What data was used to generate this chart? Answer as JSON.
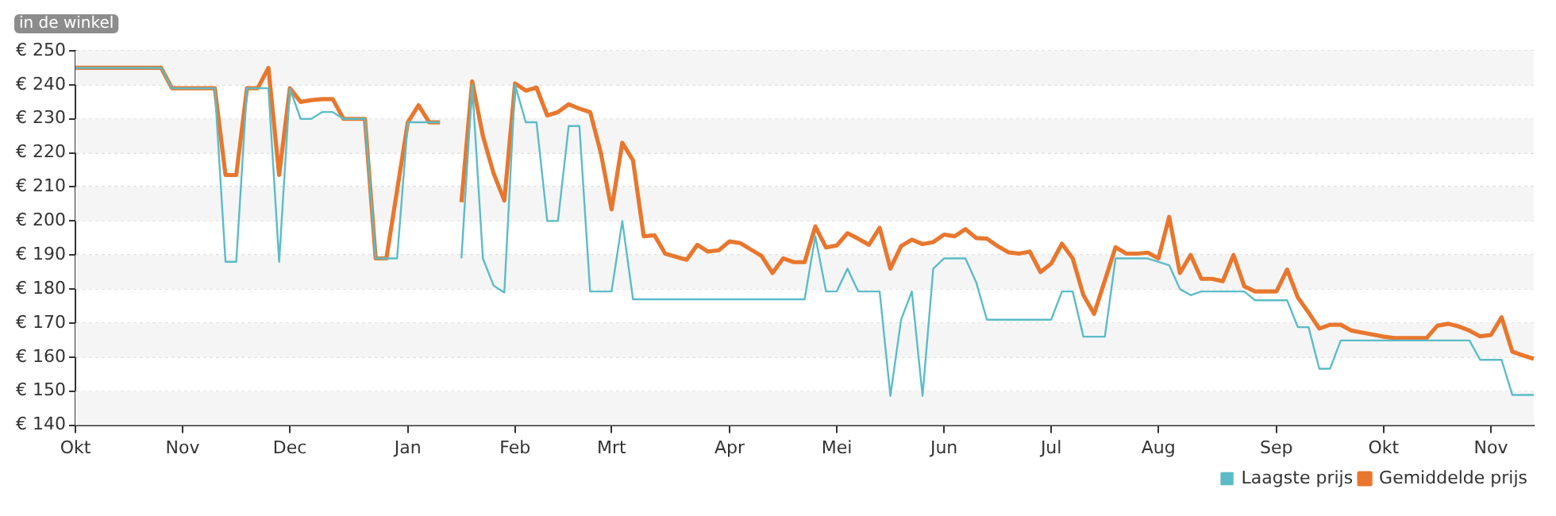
{
  "chart_data": {
    "type": "line",
    "categories": [
      "Okt",
      null,
      null,
      null,
      null,
      null,
      null,
      null,
      null,
      null,
      "Nov",
      null,
      null,
      null,
      null,
      null,
      null,
      null,
      null,
      null,
      "Dec",
      null,
      null,
      null,
      null,
      null,
      null,
      null,
      null,
      null,
      null,
      "Jan",
      null,
      null,
      null,
      null,
      null,
      null,
      null,
      null,
      null,
      "Feb",
      null,
      null,
      null,
      null,
      null,
      null,
      null,
      null,
      "Mrt",
      null,
      null,
      null,
      null,
      null,
      null,
      null,
      null,
      null,
      null,
      "Apr",
      null,
      null,
      null,
      null,
      null,
      null,
      null,
      null,
      null,
      "Mei",
      null,
      null,
      null,
      null,
      null,
      null,
      null,
      null,
      null,
      "Jun",
      null,
      null,
      null,
      null,
      null,
      null,
      null,
      null,
      null,
      "Jul",
      null,
      null,
      null,
      null,
      null,
      null,
      null,
      null,
      null,
      "Aug",
      null,
      null,
      null,
      null,
      null,
      null,
      null,
      null,
      null,
      null,
      "Sep",
      null,
      null,
      null,
      null,
      null,
      null,
      null,
      null,
      null,
      "Okt",
      null,
      null,
      null,
      null,
      null,
      null,
      null,
      null,
      null,
      "Nov",
      null,
      null,
      null,
      null
    ],
    "ylim": [
      140,
      250
    ],
    "yticks": [
      {
        "value": 140,
        "label": "€ 140"
      },
      {
        "value": 150,
        "label": "€ 150"
      },
      {
        "value": 160,
        "label": "€ 160"
      },
      {
        "value": 170,
        "label": "€ 170"
      },
      {
        "value": 180,
        "label": "€ 180"
      },
      {
        "value": 190,
        "label": "€ 190"
      },
      {
        "value": 200,
        "label": "€ 200"
      },
      {
        "value": 210,
        "label": "€ 210"
      },
      {
        "value": 220,
        "label": "€ 220"
      },
      {
        "value": 230,
        "label": "€ 230"
      },
      {
        "value": 240,
        "label": "€ 240"
      },
      {
        "value": 250,
        "label": "€ 250"
      }
    ],
    "grid": "y",
    "legend": "bottom right",
    "line_style": "solid",
    "annotations": [
      "in de winkel"
    ],
    "series": [
      {
        "name": "Gemiddelde prijs",
        "color": "#e8772e",
        "values": [
          245,
          245,
          245,
          245,
          245,
          245,
          245,
          245,
          245,
          239,
          239,
          239,
          239,
          239,
          213.5,
          213.5,
          239,
          239,
          245,
          213.5,
          239,
          235,
          235.5,
          235.8,
          235.8,
          230,
          230,
          230,
          189,
          189,
          209,
          229,
          234,
          229,
          229,
          null,
          205.5,
          241,
          225,
          214,
          206,
          240.4,
          238.3,
          239.2,
          231,
          232,
          234.3,
          233,
          232,
          220,
          203.4,
          223,
          217.8,
          195.5,
          195.8,
          190.4,
          189.5,
          188.6,
          193,
          191,
          191.4,
          194,
          193.5,
          191.6,
          189.7,
          184.7,
          189,
          187.9,
          187.9,
          198.4,
          192.2,
          192.8,
          196.4,
          194.8,
          193,
          198,
          186,
          192.6,
          194.5,
          193.2,
          193.8,
          196,
          195.5,
          197.6,
          195,
          194.8,
          192.6,
          190.8,
          190.4,
          191,
          185,
          187.5,
          193.3,
          189,
          178.2,
          172.7,
          182.5,
          192.3,
          190.4,
          190.4,
          190.7,
          189,
          201.2,
          184.7,
          190,
          183,
          183,
          182.3,
          190,
          180.8,
          179.3,
          179.3,
          179.3,
          185.7,
          177.5,
          173.1,
          168.4,
          169.5,
          169.5,
          167.8,
          167.2,
          166.6,
          166,
          165.6,
          165.6,
          165.6,
          165.6,
          169.2,
          169.8,
          169,
          167.8,
          166.1,
          166.5,
          171.7,
          161.6,
          160.5,
          159.5
        ]
      },
      {
        "name": "Laagste prijs",
        "color": "#5bbcc7",
        "values": [
          245,
          245,
          245,
          245,
          245,
          245,
          245,
          245,
          245,
          239,
          239,
          239,
          239,
          239,
          188,
          188,
          239,
          239,
          239,
          188,
          239,
          230,
          230,
          232,
          232,
          230,
          230,
          230,
          189,
          189,
          189,
          229,
          229,
          229,
          229,
          null,
          189,
          240,
          189,
          181,
          179,
          240,
          229,
          229,
          200,
          200,
          227.9,
          227.9,
          179.3,
          179.3,
          179.3,
          200,
          177,
          177,
          177,
          177,
          177,
          177,
          177,
          177,
          177,
          177,
          177,
          177,
          177,
          177,
          177,
          177,
          177,
          195.5,
          179.3,
          179.3,
          186,
          179.3,
          179.3,
          179.3,
          148.6,
          171,
          179.3,
          148.6,
          186,
          189,
          189,
          189,
          182,
          171,
          171,
          171,
          171,
          171,
          171,
          171,
          179.3,
          179.3,
          166,
          166,
          166,
          189,
          189,
          189,
          189,
          188,
          187,
          180,
          178.2,
          179.3,
          179.3,
          179.3,
          179.3,
          179.3,
          176.7,
          176.7,
          176.7,
          176.7,
          168.8,
          168.8,
          156.6,
          156.6,
          164.9,
          164.9,
          164.9,
          164.9,
          164.9,
          164.9,
          164.9,
          164.9,
          164.9,
          164.9,
          164.9,
          164.9,
          164.9,
          159.2,
          159.2,
          159.2,
          148.9,
          148.9,
          148.9
        ]
      }
    ]
  }
}
